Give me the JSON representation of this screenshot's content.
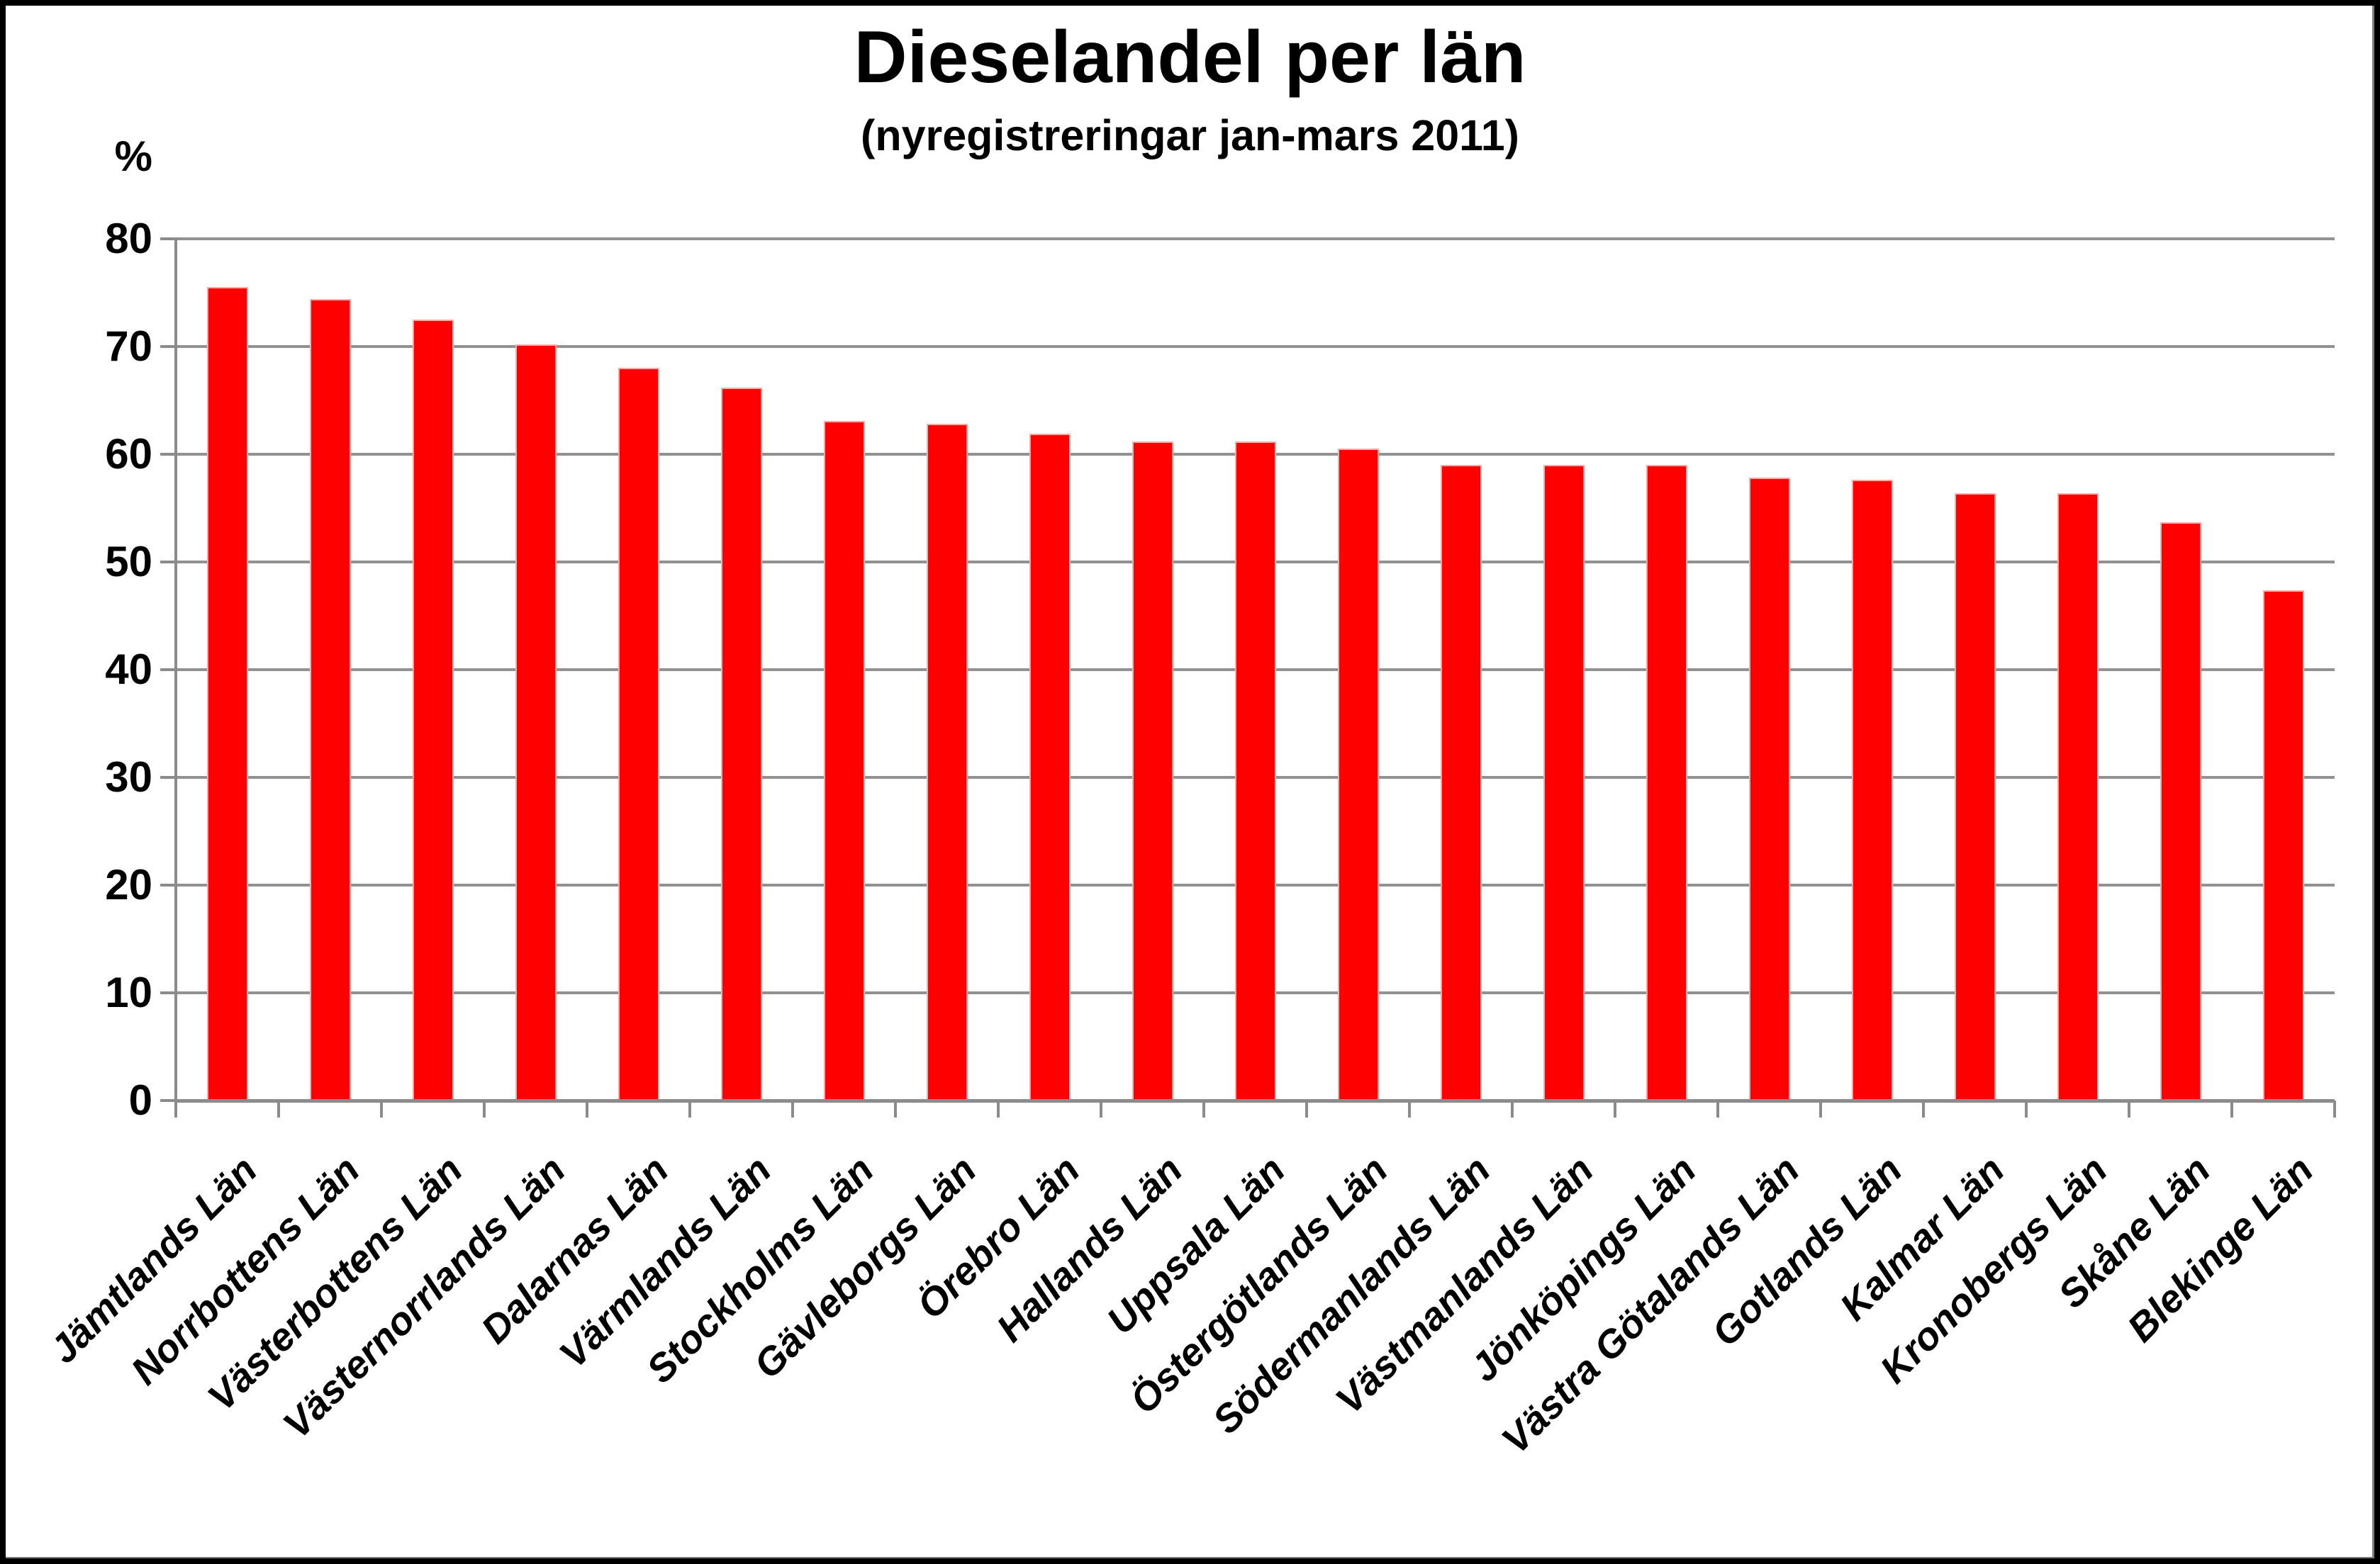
{
  "page": {
    "background_color": "#ffffff",
    "frame_color": "#000000"
  },
  "chart_data": {
    "type": "bar",
    "title": "Dieselandel per län",
    "subtitle": "(nyregistreringar jan-mars 2011)",
    "ylabel": "%",
    "xlabel": "",
    "ylim": [
      0,
      80
    ],
    "yticks": [
      0,
      10,
      20,
      30,
      40,
      50,
      60,
      70,
      80
    ],
    "grid": true,
    "legend": false,
    "bar_color": "#fe0000",
    "bar_border_color": "#ffa8a8",
    "gridline_color": "#929292",
    "categories": [
      "Jämtlands Län",
      "Norrbottens Län",
      "Västerbottens Län",
      "Västernorrlands Län",
      "Dalarnas Län",
      "Värmlands Län",
      "Stockholms Län",
      "Gävleborgs Län",
      "Örebro Län",
      "Hallands Län",
      "Uppsala Län",
      "Östergötlands Län",
      "Södermanlands Län",
      "Västmanlands Län",
      "Jönköpings Län",
      "Västra Götalands Län",
      "Gotlands Län",
      "Kalmar Län",
      "Kronobergs Län",
      "Skåne Län",
      "Blekinge Län"
    ],
    "values": [
      75.5,
      74.4,
      72.5,
      70.2,
      68.0,
      66.2,
      63.1,
      62.8,
      61.9,
      61.2,
      61.2,
      60.5,
      59.0,
      59.0,
      59.0,
      57.8,
      57.6,
      56.4,
      56.4,
      53.7,
      47.4
    ]
  }
}
